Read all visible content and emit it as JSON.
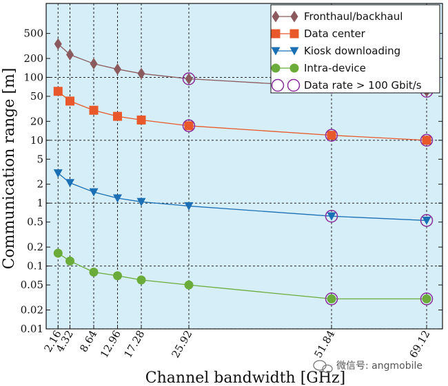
{
  "chart_data": {
    "type": "line",
    "title": "",
    "xlabel": "Channel bandwidth [GHz]",
    "ylabel": "Communication range [m]",
    "yscale": "log",
    "xlim": [
      0,
      72
    ],
    "ylim": [
      0.01,
      1500
    ],
    "grid": true,
    "legend_position": "top-right",
    "background_color": "#d6eef8",
    "x_ticks": [
      2.16,
      4.32,
      8.64,
      12.96,
      17.28,
      25.92,
      51.84,
      69.12
    ],
    "x_tick_labels": [
      "2.16",
      "4.32",
      "8.64",
      "12.96",
      "17.28",
      "25.92",
      "51.84",
      "69.12"
    ],
    "y_ticks": [
      0.01,
      0.02,
      0.05,
      0.1,
      0.2,
      0.5,
      1,
      2,
      5,
      10,
      20,
      50,
      100,
      200,
      500
    ],
    "y_tick_labels": [
      "0.01",
      "0.02",
      "0.05",
      "0.1",
      "0.2",
      "0.5",
      "1",
      "2",
      "5",
      "10",
      "20",
      "50",
      "100",
      "200",
      "500"
    ],
    "x": [
      2.16,
      4.32,
      8.64,
      12.96,
      17.28,
      25.92,
      51.84,
      69.12
    ],
    "series": [
      {
        "name": "Fronthaul/backhaul",
        "marker": "diamond",
        "color": "#8b5a5e",
        "values": [
          340,
          230,
          165,
          135,
          115,
          95,
          70,
          60
        ]
      },
      {
        "name": "Data center",
        "marker": "square",
        "color": "#e8582a",
        "values": [
          60,
          42,
          30,
          24,
          21,
          17,
          12,
          10
        ]
      },
      {
        "name": "Kiosk downloading",
        "marker": "triangle-down",
        "color": "#1a6fb5",
        "values": [
          3.0,
          2.1,
          1.5,
          1.2,
          1.05,
          0.9,
          0.62,
          0.53
        ]
      },
      {
        "name": "Intra-device",
        "marker": "circle",
        "color": "#6aab3a",
        "values": [
          0.16,
          0.12,
          0.08,
          0.07,
          0.06,
          0.05,
          0.03,
          0.03
        ]
      }
    ],
    "highlight": {
      "name": "Data rate > 100 Gbit/s",
      "marker": "open-circle",
      "color": "#8a2b9c",
      "points": [
        {
          "series": 0,
          "x": 25.92
        },
        {
          "series": 0,
          "x": 51.84
        },
        {
          "series": 0,
          "x": 69.12
        },
        {
          "series": 1,
          "x": 25.92
        },
        {
          "series": 1,
          "x": 51.84
        },
        {
          "series": 1,
          "x": 69.12
        },
        {
          "series": 2,
          "x": 51.84
        },
        {
          "series": 2,
          "x": 69.12
        },
        {
          "series": 3,
          "x": 51.84
        },
        {
          "series": 3,
          "x": 69.12
        }
      ]
    }
  },
  "watermark": {
    "text": "微信号: angmobile"
  }
}
